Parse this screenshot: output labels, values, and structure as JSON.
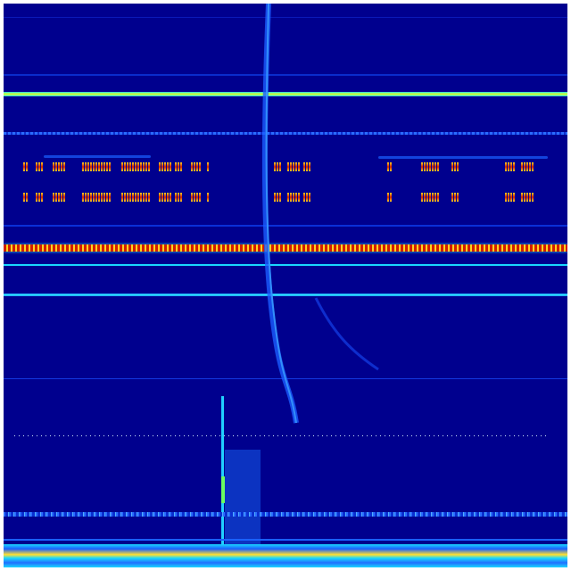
{
  "colors": {
    "background": "#00008e",
    "low": "#0a2cff",
    "mid": "#19d8ff",
    "high_line": "#c8ff3c",
    "burst_red": "#d21e00",
    "burst_yellow": "#ffd21e"
  }
}
